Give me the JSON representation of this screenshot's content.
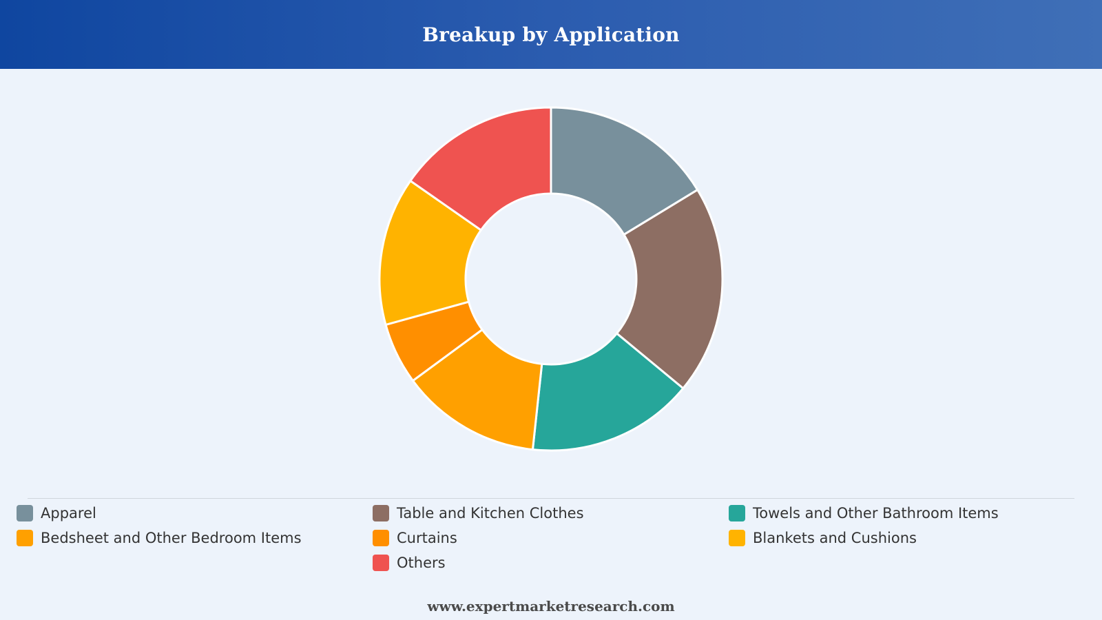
{
  "header": {
    "title": "Breakup by Application"
  },
  "footer": {
    "text": "www.expertmarketresearch.com"
  },
  "chart_data": {
    "type": "pie",
    "variant": "donut",
    "title": "Breakup by Application",
    "legend_position": "bottom",
    "categories": [
      "Apparel",
      "Table and Kitchen Clothes",
      "Towels and Other Bathroom Items",
      "Bedsheet and Other Bedroom Items",
      "Curtains",
      "Blankets and Cushions",
      "Others"
    ],
    "values": [
      16.3,
      19.7,
      15.7,
      13.2,
      5.8,
      14.0,
      15.3
    ],
    "colors": [
      "#78909c",
      "#8d6e63",
      "#26a69a",
      "#ffa000",
      "#ff8f00",
      "#ffb300",
      "#ef5350"
    ],
    "slice_order": [
      0,
      1,
      2,
      3,
      4,
      5,
      6
    ]
  }
}
